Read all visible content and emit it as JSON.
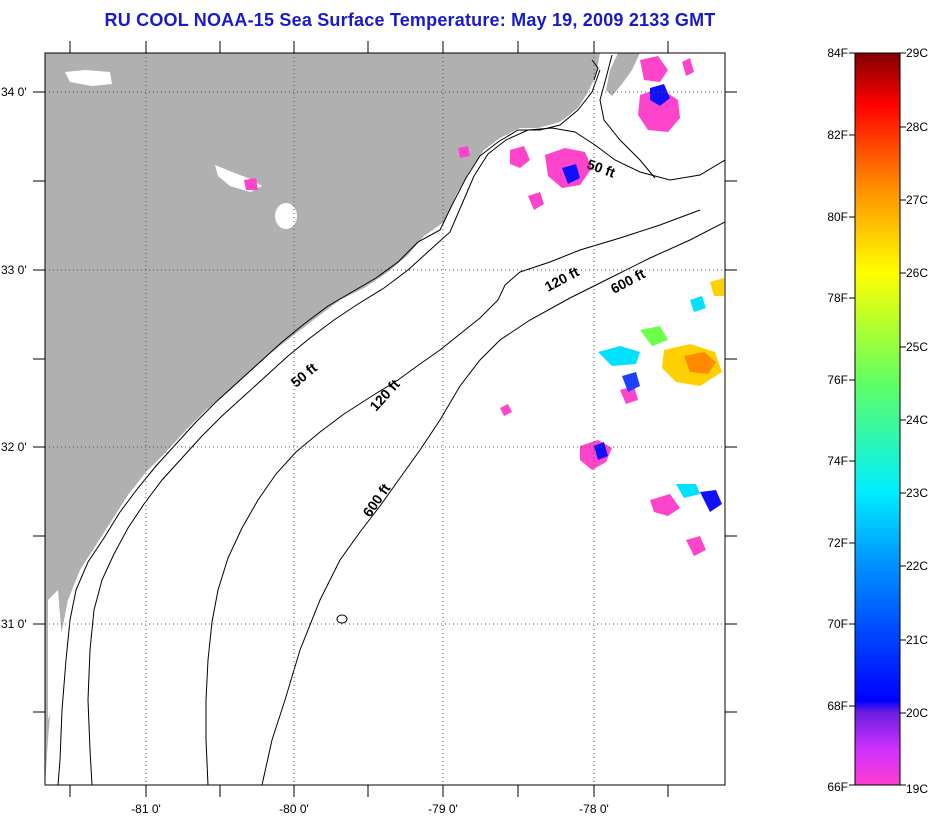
{
  "title": "RU COOL  NOAA-15  Sea Surface Temperature:  May 19, 2009 2133 GMT",
  "axes": {
    "x_ticks": [
      "-81 0'",
      "-80 0'",
      "-79 0'",
      "-78 0'"
    ],
    "y_ticks": [
      "34 0'",
      "33 0'",
      "32 0'",
      "31 0'"
    ]
  },
  "contour_labels": [
    "50 ft",
    "120 ft",
    "600 ft",
    "50 ft",
    "120 ft",
    "600 ft"
  ],
  "colorbar": {
    "left_labels": [
      "84F",
      "82F",
      "80F",
      "78F",
      "76F",
      "74F",
      "72F",
      "70F",
      "68F",
      "66F"
    ],
    "right_labels": [
      "29C",
      "28C",
      "27C",
      "26C",
      "25C",
      "24C",
      "23C",
      "22C",
      "21C",
      "20C",
      "19C"
    ]
  },
  "colors": {
    "title": "#1a1acc",
    "land": "#b0b0b0",
    "ocean": "#ffffff",
    "grid": "#555555"
  },
  "sst_patches": [
    {
      "label": "pink cloud edge",
      "color": "#ff44cc"
    },
    {
      "label": "blue cold spot",
      "color": "#1010ff"
    },
    {
      "label": "warm yellow",
      "color": "#ffd000"
    },
    {
      "label": "warm orange",
      "color": "#ff8a00"
    },
    {
      "label": "cyan",
      "color": "#00e0ff"
    }
  ]
}
